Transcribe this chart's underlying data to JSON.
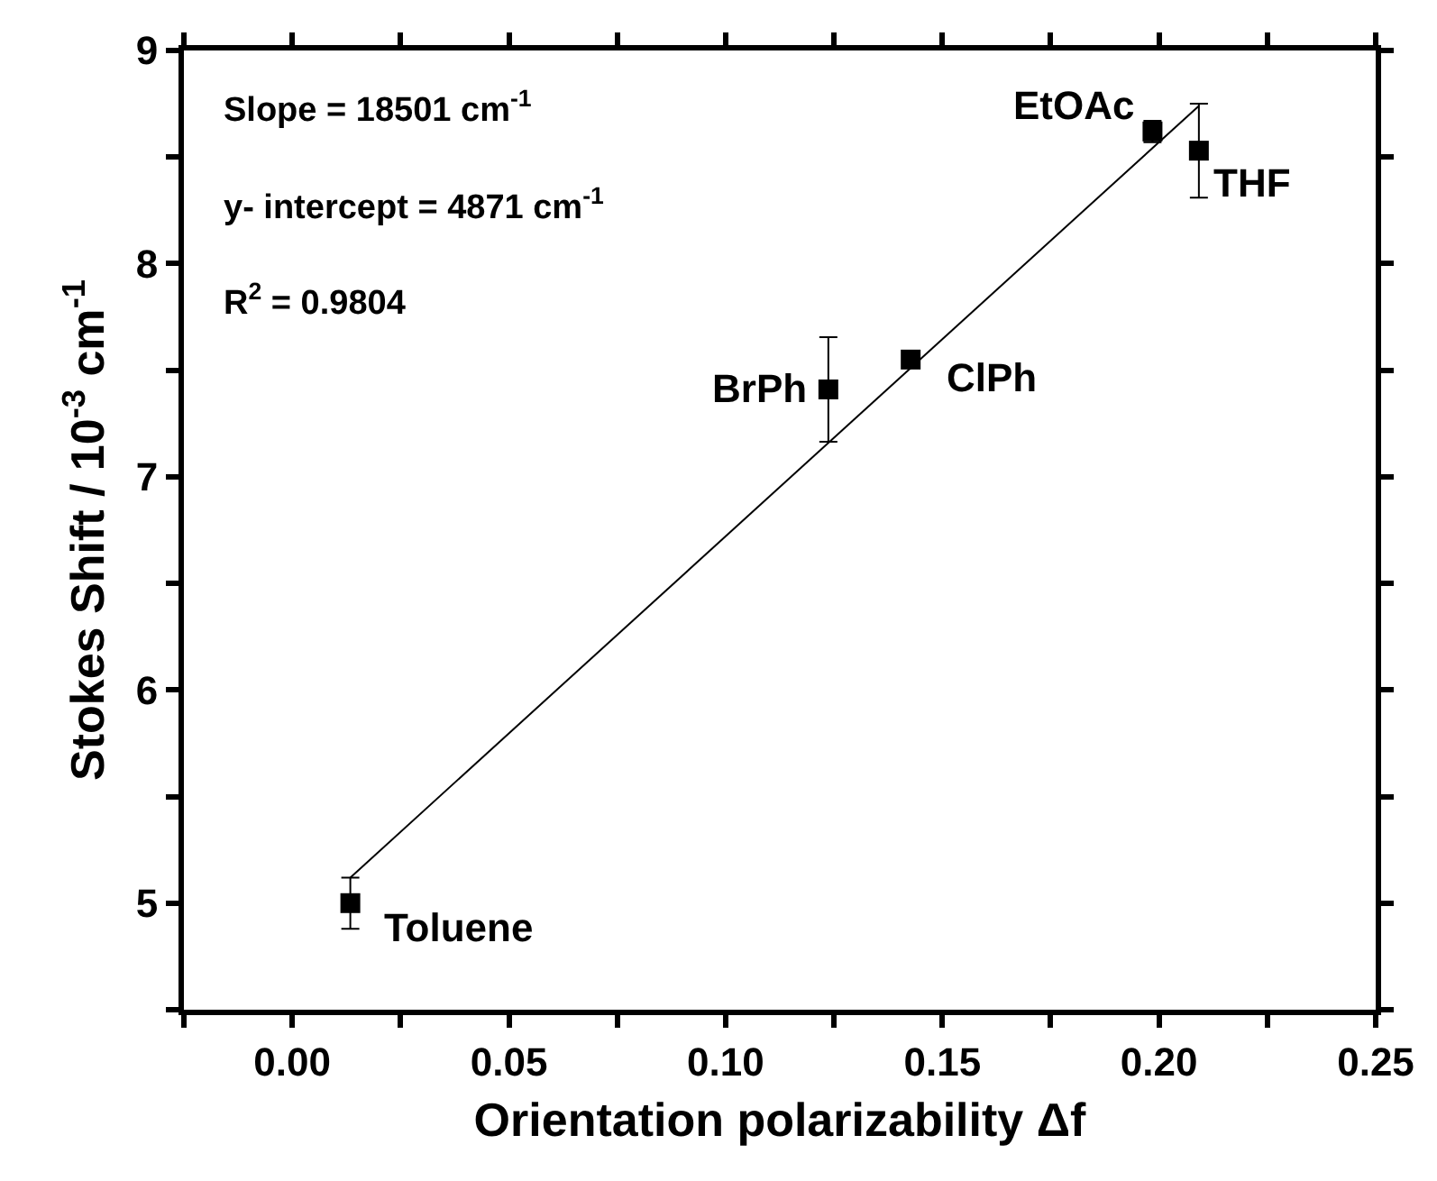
{
  "chart_data": {
    "type": "scatter",
    "xlabel": "Orientation polarizability Δf",
    "ylabel": "Stokes Shift / 10$^{-3}$ cm$^{-1}$",
    "series": [
      {
        "color": "#000000",
        "marker": "square",
        "x": [
          0.0134,
          0.1237,
          0.1427,
          0.1985,
          0.2092
        ],
        "values": [
          5.0,
          7.41,
          7.55,
          8.62,
          8.53
        ],
        "errors": [
          0.12,
          0.245,
          null,
          0.05,
          0.22
        ]
      },
      {
        "type": "line",
        "color": "#000000",
        "marker": "none",
        "line_style": "solid",
        "x": [
          0.0134,
          0.2092
        ],
        "values": [
          5.12,
          8.74
        ]
      }
    ],
    "xlim": [
      -0.025,
      0.25
    ],
    "xticks": [
      {
        "value": -0.025,
        "label": null
      },
      {
        "value": 0,
        "label": "0.00"
      },
      {
        "value": 0.025,
        "label": null
      },
      0.05,
      {
        "value": 0.075,
        "label": null
      },
      {
        "value": 0.1,
        "label": "0.10"
      },
      {
        "value": 0.125,
        "label": null
      },
      0.15,
      {
        "value": 0.175,
        "label": null
      },
      {
        "value": 0.2,
        "label": "0.20"
      },
      {
        "value": 0.225,
        "label": null
      },
      0.25
    ],
    "ylim": [
      4.5,
      9
    ],
    "yticks": [
      {
        "value": 4.5,
        "label": null
      },
      5,
      {
        "value": 5.5,
        "label": null
      },
      6,
      {
        "value": 6.5,
        "label": null
      },
      7,
      {
        "value": 7.5,
        "label": null
      },
      8,
      {
        "value": 8.5,
        "label": null
      },
      9
    ],
    "grid": false,
    "annotations": [
      "Slope = 18501 cm$^{-1}$",
      "y- intercept = 4871 cm$^{-1}$",
      "R$^{2}$ = 0.9804",
      {
        "text": "Toluene",
        "x": 0.0134,
        "y": 5.0
      },
      {
        "text": "BrPh",
        "x": 0.1237,
        "y": 7.41
      },
      {
        "text": "ClPh",
        "x": 0.1427,
        "y": 7.55
      },
      {
        "text": "EtOAc",
        "x": 0.1985,
        "y": 8.62
      },
      {
        "text": "THF",
        "x": 0.2092,
        "y": 8.53
      }
    ]
  }
}
